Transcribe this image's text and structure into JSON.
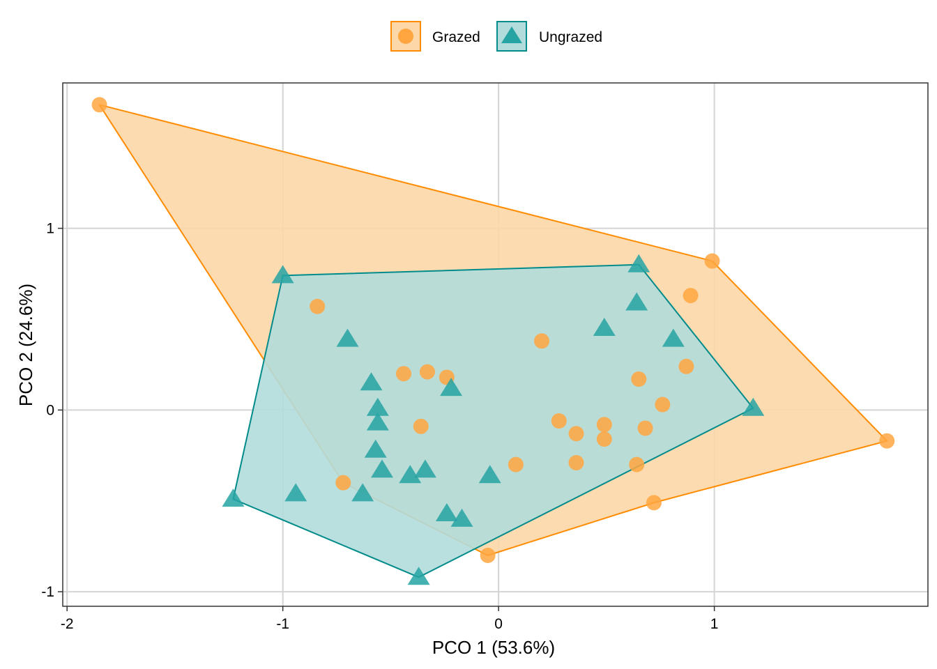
{
  "chart_data": {
    "type": "scatter",
    "xlabel": "PCO 1 (53.6%)",
    "ylabel": "PCO 2 (24.6%)",
    "xlim": [
      -2.02,
      1.99
    ],
    "ylim": [
      -1.08,
      1.8
    ],
    "x_ticks": [
      -2,
      -1,
      0,
      1
    ],
    "y_ticks": [
      -1,
      0,
      1
    ],
    "x_tick_labels": [
      "-2",
      "-1",
      "0",
      "1"
    ],
    "y_tick_labels": [
      "-1",
      "0",
      "1"
    ],
    "grid": true,
    "legend_position": "top",
    "hulls": true,
    "series": [
      {
        "name": "Grazed",
        "marker": "circle",
        "color": "#ff8c00",
        "fill": "#ffa640",
        "hull_fill": "#fcd7a8",
        "points": [
          [
            -1.85,
            1.68
          ],
          [
            -0.84,
            0.57
          ],
          [
            -0.44,
            0.2
          ],
          [
            -0.33,
            0.21
          ],
          [
            -0.24,
            0.18
          ],
          [
            -0.36,
            -0.09
          ],
          [
            -0.72,
            -0.4
          ],
          [
            -0.05,
            -0.8
          ],
          [
            0.08,
            -0.3
          ],
          [
            0.2,
            0.38
          ],
          [
            0.28,
            -0.06
          ],
          [
            0.36,
            -0.13
          ],
          [
            0.36,
            -0.29
          ],
          [
            0.49,
            -0.08
          ],
          [
            0.49,
            -0.16
          ],
          [
            0.64,
            -0.3
          ],
          [
            0.65,
            0.17
          ],
          [
            0.68,
            -0.1
          ],
          [
            0.76,
            0.03
          ],
          [
            0.87,
            0.24
          ],
          [
            0.89,
            0.63
          ],
          [
            0.99,
            0.82
          ],
          [
            0.72,
            -0.51
          ],
          [
            1.8,
            -0.17
          ]
        ],
        "hull": [
          [
            -1.85,
            1.68
          ],
          [
            0.99,
            0.82
          ],
          [
            1.8,
            -0.17
          ],
          [
            0.72,
            -0.51
          ],
          [
            -0.05,
            -0.8
          ],
          [
            -0.72,
            -0.4
          ]
        ]
      },
      {
        "name": "Ungrazed",
        "marker": "triangle",
        "color": "#008b8b",
        "fill": "#26a3a3",
        "hull_fill": "#b2dcdc",
        "points": [
          [
            -1.0,
            0.74
          ],
          [
            -0.7,
            0.39
          ],
          [
            -0.59,
            0.15
          ],
          [
            -0.56,
            0.01
          ],
          [
            -0.56,
            -0.07
          ],
          [
            -0.57,
            -0.22
          ],
          [
            -0.54,
            -0.33
          ],
          [
            -0.41,
            -0.36
          ],
          [
            -0.34,
            -0.33
          ],
          [
            -0.22,
            0.12
          ],
          [
            -0.04,
            -0.36
          ],
          [
            -0.24,
            -0.57
          ],
          [
            -0.17,
            -0.6
          ],
          [
            -0.63,
            -0.46
          ],
          [
            -0.94,
            -0.46
          ],
          [
            -1.23,
            -0.49
          ],
          [
            -0.37,
            -0.92
          ],
          [
            0.49,
            0.45
          ],
          [
            0.64,
            0.59
          ],
          [
            0.65,
            0.8
          ],
          [
            0.81,
            0.39
          ],
          [
            1.18,
            0.01
          ]
        ],
        "hull": [
          [
            -1.0,
            0.74
          ],
          [
            0.65,
            0.8
          ],
          [
            1.18,
            0.01
          ],
          [
            -0.37,
            -0.92
          ],
          [
            -1.23,
            -0.49
          ]
        ]
      }
    ]
  }
}
